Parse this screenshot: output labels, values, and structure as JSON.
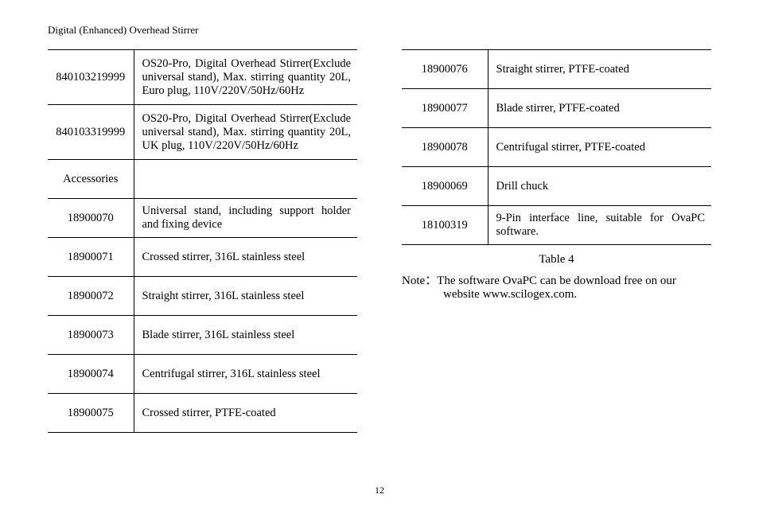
{
  "header": "Digital (Enhanced) Overhead Stirrer",
  "page_number": "12",
  "left_rows": [
    {
      "code": "840103219999",
      "desc": "OS20-Pro, Digital Overhead Stirrer(Exclude universal stand), Max. stirring quantity 20L, Euro plug, 110V/220V/50Hz/60Hz",
      "tall": true,
      "spread": true
    },
    {
      "code": "840103319999",
      "desc": "OS20-Pro, Digital Overhead Stirrer(Exclude universal stand), Max. stirring quantity 20L, UK plug, 110V/220V/50Hz/60Hz",
      "tall": true,
      "spread": true
    },
    {
      "code": "Accessories",
      "desc": ""
    },
    {
      "code": "18900070",
      "desc": "Universal stand, including support holder and fixing device"
    },
    {
      "code": "18900071",
      "desc": "Crossed stirrer, 316L stainless steel"
    },
    {
      "code": "18900072",
      "desc": "Straight stirrer, 316L stainless steel"
    },
    {
      "code": "18900073",
      "desc": "Blade stirrer, 316L stainless steel"
    },
    {
      "code": "18900074",
      "desc": "Centrifugal stirrer, 316L stainless steel"
    },
    {
      "code": "18900075",
      "desc": "Crossed stirrer, PTFE-coated"
    }
  ],
  "right_rows": [
    {
      "code": "18900076",
      "desc": "Straight stirrer, PTFE-coated"
    },
    {
      "code": "18900077",
      "desc": "Blade stirrer, PTFE-coated"
    },
    {
      "code": "18900078",
      "desc": "Centrifugal stirrer, PTFE-coated"
    },
    {
      "code": "18900069",
      "desc": "Drill chuck"
    },
    {
      "code": "18100319",
      "desc": "9-Pin interface line, suitable for OvaPC software."
    }
  ],
  "table_caption": "Table 4",
  "note_line1": "Note：The software OvaPC can be download free on our",
  "note_line2": "website www.scilogex.com."
}
